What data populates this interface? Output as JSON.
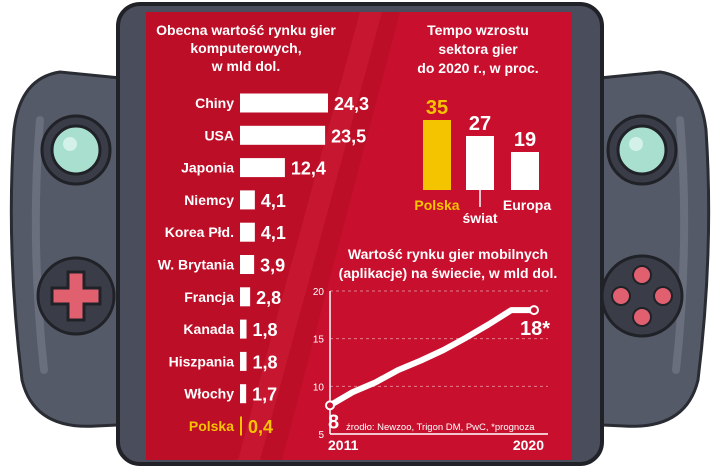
{
  "chart_data": [
    {
      "type": "bar",
      "orientation": "horizontal",
      "title": "Obecna wartość rynku gier komputerowych, w mld dol.",
      "title_lines": [
        "Obecna wartość rynku gier",
        "komputerowych,",
        "w mld dol."
      ],
      "categories": [
        "Chiny",
        "USA",
        "Japonia",
        "Niemcy",
        "Korea Płd.",
        "W. Brytania",
        "Francja",
        "Kanada",
        "Hiszpania",
        "Włochy",
        "Polska"
      ],
      "values": [
        24.3,
        23.5,
        12.4,
        4.1,
        4.1,
        3.9,
        2.8,
        1.8,
        1.8,
        1.7,
        0.4
      ],
      "value_labels": [
        "24,3",
        "23,5",
        "12,4",
        "4,1",
        "4,1",
        "3,9",
        "2,8",
        "1,8",
        "1,8",
        "1,7",
        "0,4"
      ],
      "highlight": "Polska"
    },
    {
      "type": "bar",
      "title": "Tempo wzrostu sektora gier do 2020 r., w proc.",
      "title_lines": [
        "Tempo wzrostu",
        "sektora gier",
        "do 2020 r., w proc."
      ],
      "categories": [
        "Polska",
        "świat",
        "Europa"
      ],
      "values": [
        35,
        27,
        19
      ],
      "value_labels": [
        "35",
        "27",
        "19"
      ],
      "highlight": "Polska"
    },
    {
      "type": "line",
      "title": "Wartość rynku gier mobilnych (aplikacje) na świecie, w mld dol.",
      "title_lines": [
        "Wartość rynku gier mobilnych",
        "(aplikacje) na świecie, w mld dol."
      ],
      "x": [
        2011,
        2012,
        2013,
        2014,
        2015,
        2016,
        2017,
        2018,
        2019,
        2020
      ],
      "series": [
        {
          "values": [
            8,
            9.4,
            10.4,
            11.7,
            12.7,
            13.8,
            15.1,
            16.5,
            18,
            18
          ]
        }
      ],
      "ylim": [
        5,
        20
      ],
      "yticks": [
        "5",
        "10",
        "15",
        "20"
      ],
      "x_tick_labels": [
        "2011",
        "2020"
      ],
      "start_label": "8",
      "end_label": "18*",
      "grid": true
    }
  ],
  "colors": {
    "panel": "#c8102e",
    "highlight": "#f5c400",
    "bar": "#ffffff",
    "device": "#4a4e5c"
  },
  "icons": [
    "dpad-icon",
    "face-buttons-icon",
    "joystick-icon"
  ],
  "source_note": "źrodło: Newzoo, Trigon DM, PwC, *prognoza"
}
